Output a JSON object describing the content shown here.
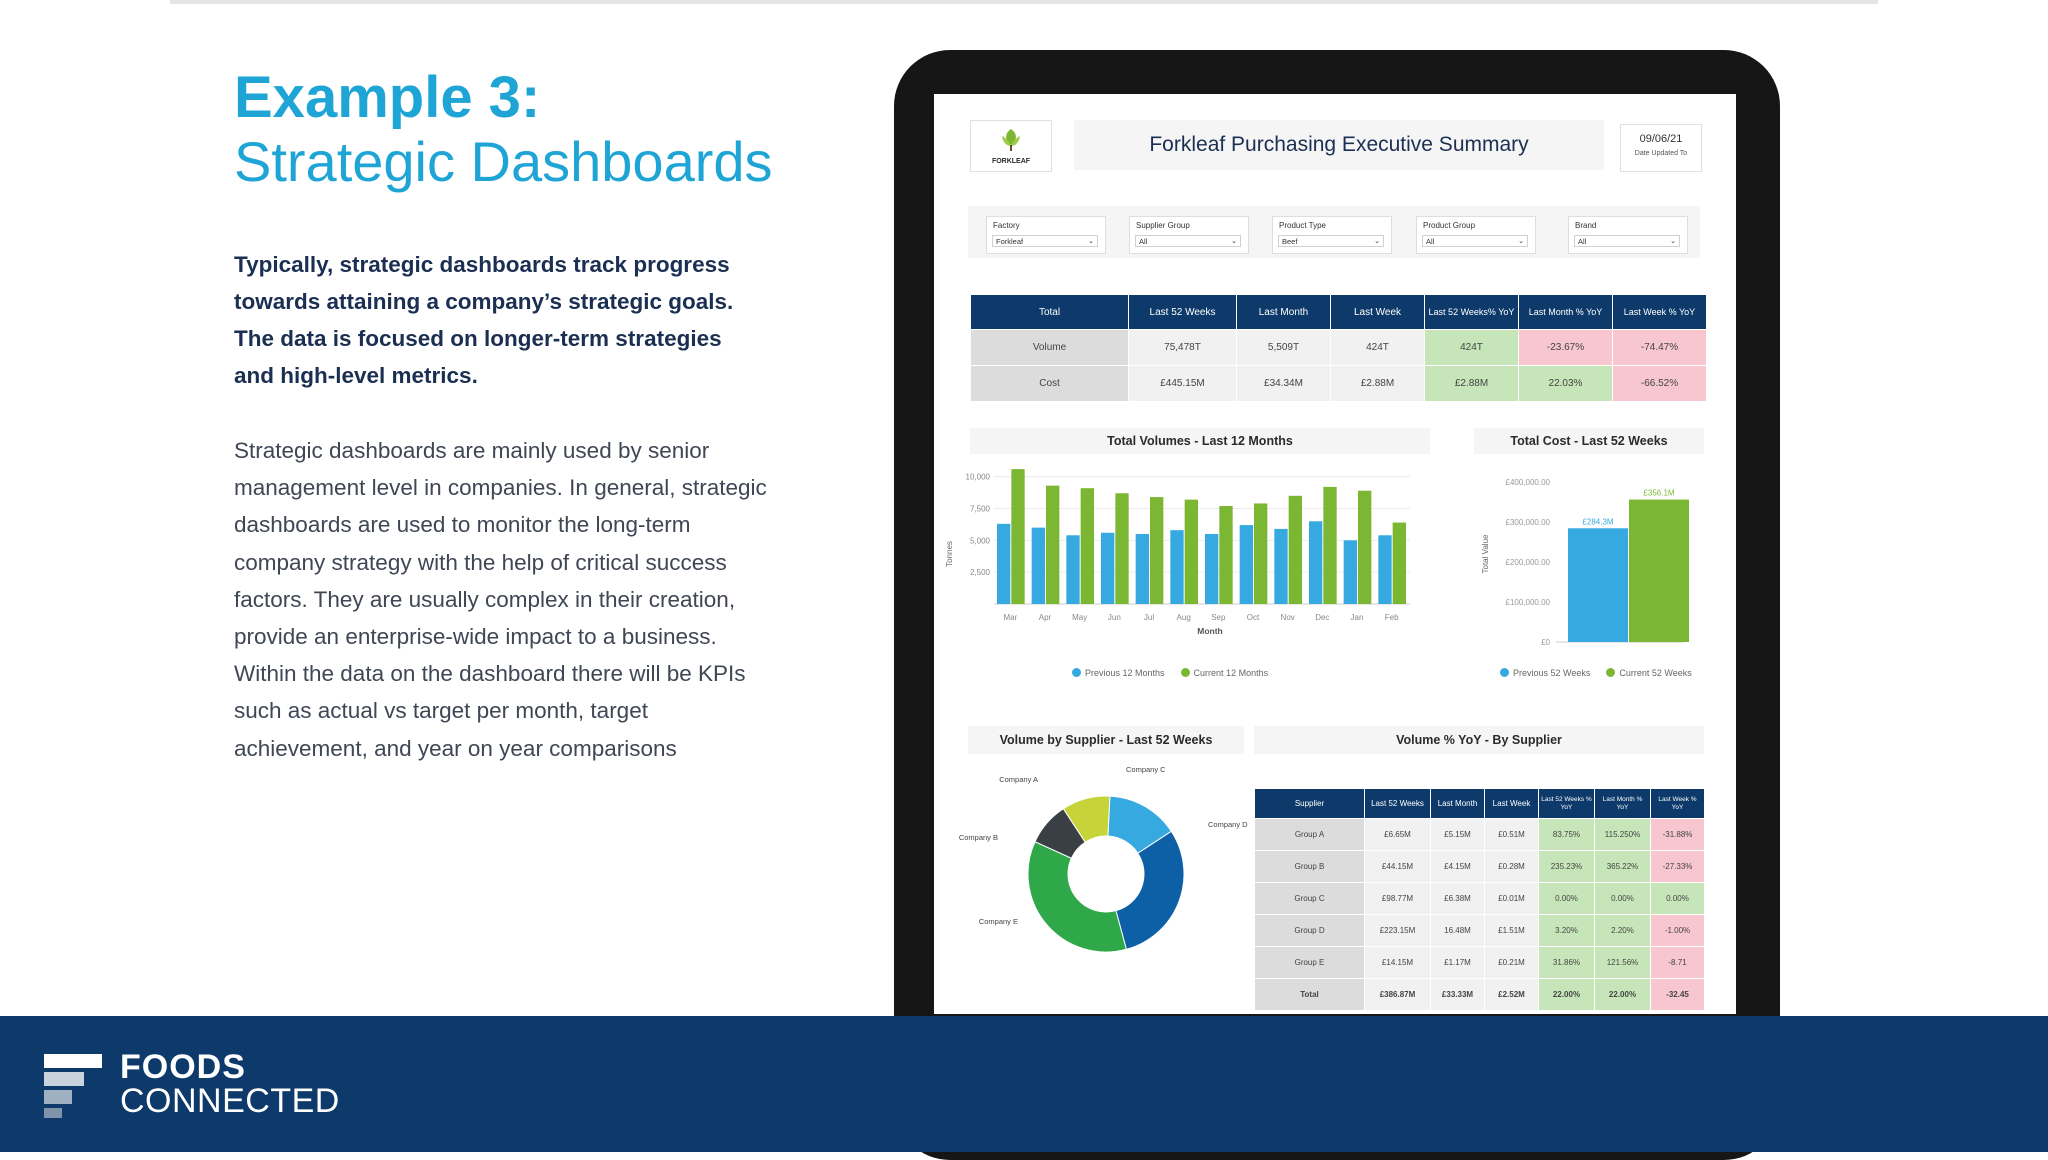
{
  "slide": {
    "heading_bold": "Example 3:",
    "heading_light": "Strategic Dashboards",
    "lead_text": "Typically, strategic dashboards track progress towards attaining a company’s strategic goals. The data is focused on longer-term strategies and high-level metrics.",
    "body_text": "Strategic dashboards are mainly used by senior management level in companies. In general, strategic dashboards are used to monitor the long-term company strategy with the help of critical success factors. They are usually complex in their creation, provide an enterprise-wide impact to a business. Within the data on the dashboard there will be KPIs such as actual vs target per month, target achievement, and year on year comparisons"
  },
  "footer": {
    "brand_line1": "FOODS",
    "brand_line2": "CONNECTED"
  },
  "colors": {
    "accent": "#1ea5d6",
    "navy": "#0d3a6a",
    "blue_series": "#36a9e1",
    "green_series": "#7cb733",
    "positive": "#c6e6b9",
    "negative": "#f7c6cf"
  },
  "dashboard": {
    "logo_text": "FORKLEAF",
    "title": "Forkleaf Purchasing Executive Summary",
    "date": "09/06/21",
    "date_label": "Date Updated To",
    "filters": [
      {
        "label": "Factory",
        "value": "Forkleaf"
      },
      {
        "label": "Supplier Group",
        "value": "All"
      },
      {
        "label": "Product Type",
        "value": "Beef"
      },
      {
        "label": "Product Group",
        "value": "All"
      },
      {
        "label": "Brand",
        "value": "All"
      }
    ],
    "summary_table": {
      "headers": [
        "Total",
        "Last 52 Weeks",
        "Last Month",
        "Last Week",
        "Last 52 Weeks% YoY",
        "Last Month % YoY",
        "Last Week % YoY"
      ],
      "rows": [
        [
          "Volume",
          "75,478T",
          "5,509T",
          "424T",
          "424T",
          "-23.67%",
          "-74.47%"
        ],
        [
          "Cost",
          "£445.15M",
          "£34.34M",
          "£2.88M",
          "£2.88M",
          "22.03%",
          "-66.52%"
        ]
      ]
    },
    "volume_chart": {
      "title": "Total Volumes - Last 12 Months",
      "xlabel": "Month",
      "ylabel": "Tonnes",
      "legend": [
        "Previous 12 Months",
        "Current 12 Months"
      ]
    },
    "cost_chart": {
      "title": "Total Cost - Last 52 Weeks",
      "ylabel": "Total Value",
      "legend": [
        "Previous 52 Weeks",
        "Current 52 Weeks"
      ]
    },
    "donut_chart": {
      "title": "Volume by Supplier - Last 52 Weeks"
    },
    "supplier_table": {
      "title": "Volume % YoY - By Supplier",
      "headers": [
        "Supplier",
        "Last 52 Weeks",
        "Last Month",
        "Last Week",
        "Last 52 Weeks % YoY",
        "Last Month % YoY",
        "Last Week % YoY"
      ],
      "rows": [
        [
          "Group A",
          "£6.65M",
          "£5.15M",
          "£0.51M",
          "83.75%",
          "115.250%",
          "-31.88%"
        ],
        [
          "Group B",
          "£44.15M",
          "£4.15M",
          "£0.28M",
          "235.23%",
          "365.22%",
          "-27.33%"
        ],
        [
          "Group C",
          "£98.77M",
          "£6.38M",
          "£0.01M",
          "0.00%",
          "0.00%",
          "0.00%"
        ],
        [
          "Group D",
          "£223.15M",
          "16.48M",
          "£1.51M",
          "3.20%",
          "2.20%",
          "-1.00%"
        ],
        [
          "Group E",
          "£14.15M",
          "£1.17M",
          "£0.21M",
          "31.86%",
          "121.56%",
          "-8.71"
        ]
      ],
      "total": [
        "Total",
        "£386.87M",
        "£33.33M",
        "£2.52M",
        "22.00%",
        "22.00%",
        "-32.45"
      ]
    }
  },
  "chart_data": [
    {
      "type": "bar",
      "title": "Total Volumes - Last 12 Months",
      "xlabel": "Month",
      "ylabel": "Tonnes",
      "categories": [
        "Mar",
        "Apr",
        "May",
        "Jun",
        "Jul",
        "Aug",
        "Sep",
        "Oct",
        "Nov",
        "Dec",
        "Jan",
        "Feb"
      ],
      "series": [
        {
          "name": "Previous 12 Months",
          "values": [
            6300,
            6000,
            5400,
            5600,
            5500,
            5800,
            5500,
            6200,
            5900,
            6500,
            5000,
            5400
          ]
        },
        {
          "name": "Current 12 Months",
          "values": [
            10600,
            9300,
            9100,
            8700,
            8400,
            8200,
            7700,
            7900,
            8500,
            9200,
            8900,
            6400
          ]
        }
      ],
      "yticks": [
        2500,
        5000,
        7500,
        10000
      ],
      "ylim": [
        0,
        11000
      ],
      "legend": "bottom"
    },
    {
      "type": "bar",
      "title": "Total Cost - Last 52 Weeks",
      "ylabel": "Total Value",
      "categories": [
        "Previous 52 Weeks",
        "Current 52 Weeks"
      ],
      "values": [
        284.3,
        356.1
      ],
      "data_labels": [
        "£284.3M",
        "£356.1M"
      ],
      "yticks": [
        "£0",
        "£100,000.00",
        "£200,000.00",
        "£300,000.00",
        "£400,000.00"
      ],
      "ylim": [
        0,
        400
      ],
      "legend": "bottom"
    },
    {
      "type": "pie",
      "title": "Volume by Supplier - Last 52 Weeks",
      "categories": [
        "Company A",
        "Company B",
        "Company C",
        "Company D",
        "Company E"
      ],
      "values": [
        10,
        9,
        15,
        30,
        36
      ],
      "colors": [
        "#c6d43a",
        "#3a3f45",
        "#36a9e1",
        "#0d5fa6",
        "#2fa84a"
      ]
    }
  ]
}
